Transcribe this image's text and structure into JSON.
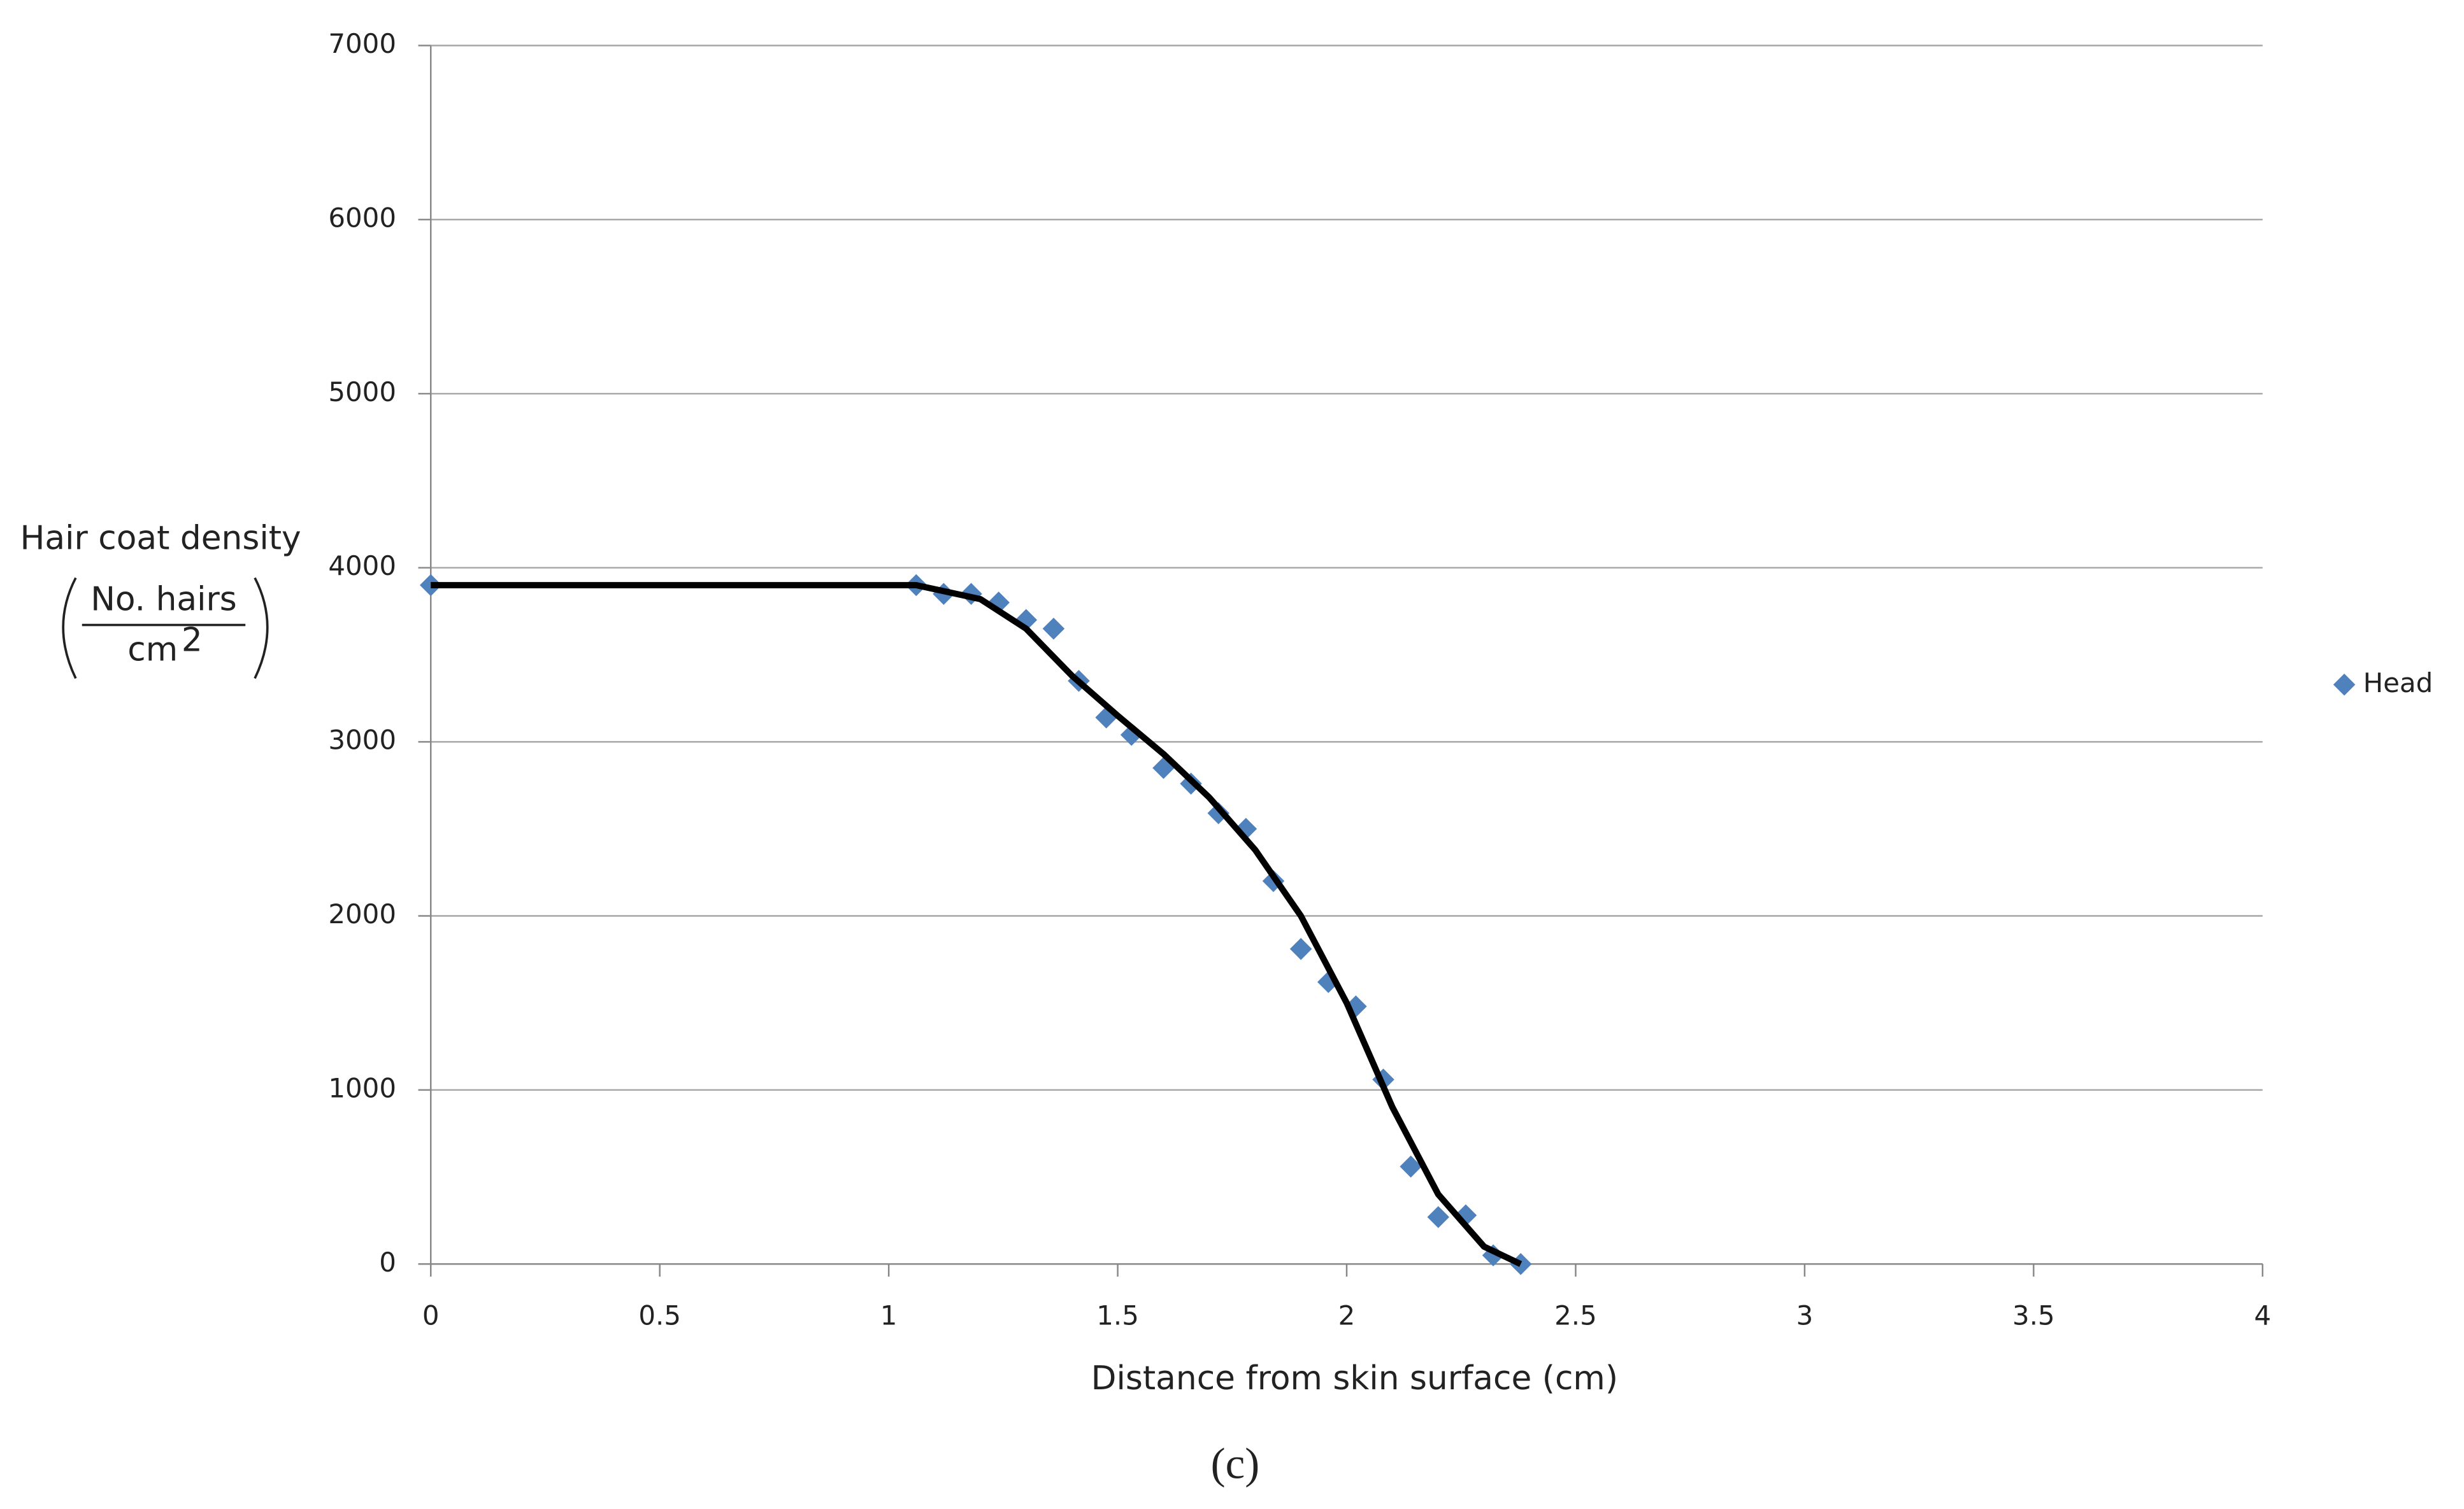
{
  "chart_data": {
    "type": "scatter",
    "x_label": "Distance from skin surface (cm)",
    "y_label": "Hair coat density",
    "y_unit_numerator": "No. hairs",
    "y_unit_denominator": "cm",
    "y_unit_power": "2",
    "caption": "(c)",
    "xlim": [
      0,
      4
    ],
    "xticks": [
      0,
      0.5,
      1,
      1.5,
      2,
      2.5,
      3,
      3.5,
      4
    ],
    "ylim": [
      0,
      7000
    ],
    "yticks": [
      0,
      1000,
      2000,
      3000,
      4000,
      5000,
      6000,
      7000
    ],
    "grid": true,
    "legend": "right",
    "series": [
      {
        "name": "Head",
        "type": "scatter",
        "color": "#4f81bd",
        "x": [
          0,
          1.06,
          1.12,
          1.18,
          1.24,
          1.3,
          1.36,
          1.415,
          1.475,
          1.53,
          1.6,
          1.66,
          1.72,
          1.78,
          1.84,
          1.9,
          1.96,
          2.02,
          2.08,
          2.14,
          2.2,
          2.26,
          2.32,
          2.38
        ],
        "values": [
          3900,
          3900,
          3850,
          3850,
          3800,
          3700,
          3650,
          3350,
          3140,
          3040,
          2850,
          2760,
          2590,
          2500,
          2200,
          1810,
          1620,
          1480,
          1060,
          560,
          270,
          280,
          50,
          0
        ]
      },
      {
        "type": "line",
        "color": "#000000",
        "x": [
          0,
          1.06,
          1.2,
          1.3,
          1.4,
          1.5,
          1.6,
          1.7,
          1.8,
          1.9,
          2.0,
          2.1,
          2.2,
          2.3,
          2.38
        ],
        "values": [
          3900,
          3900,
          3820,
          3650,
          3380,
          3150,
          2930,
          2680,
          2380,
          2000,
          1500,
          900,
          400,
          100,
          0
        ]
      }
    ]
  }
}
